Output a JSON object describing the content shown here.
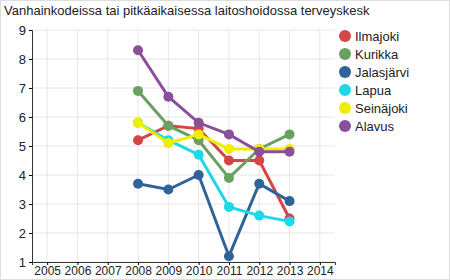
{
  "chart_data": {
    "type": "line",
    "title": "Vanhainkodeissa tai pitkäaikaisessa laitoshoidossa terveyskesk",
    "x": [
      2008,
      2009,
      2010,
      2011,
      2012,
      2013
    ],
    "series": [
      {
        "name": "Ilmajoki",
        "color": "#d64545",
        "values": [
          5.2,
          5.7,
          5.6,
          4.5,
          4.5,
          2.5
        ]
      },
      {
        "name": "Kurikka",
        "color": "#6aa061",
        "values": [
          6.9,
          5.7,
          5.2,
          3.9,
          4.9,
          5.4
        ]
      },
      {
        "name": "Jalasjärvi",
        "color": "#2f6399",
        "values": [
          3.7,
          3.5,
          4.0,
          1.2,
          3.7,
          3.1
        ]
      },
      {
        "name": "Lapua",
        "color": "#1dd8e8",
        "values": [
          5.8,
          5.2,
          4.7,
          2.9,
          2.6,
          2.4
        ]
      },
      {
        "name": "Seinäjoki",
        "color": "#eeee00",
        "values": [
          5.8,
          5.1,
          5.4,
          4.9,
          4.9,
          4.9
        ]
      },
      {
        "name": "Alavus",
        "color": "#8a4f9a",
        "values": [
          8.3,
          6.7,
          5.8,
          5.4,
          4.8,
          4.8
        ]
      }
    ],
    "xlim": [
      2004.5,
      2014.5
    ],
    "xticks": [
      2005,
      2006,
      2007,
      2008,
      2009,
      2010,
      2011,
      2012,
      2013,
      2014
    ],
    "ylim": [
      1,
      9
    ],
    "yticks": [
      1,
      2,
      3,
      4,
      5,
      6,
      7,
      8,
      9
    ],
    "grid": true,
    "legend": "top-right",
    "marker": "circle"
  }
}
